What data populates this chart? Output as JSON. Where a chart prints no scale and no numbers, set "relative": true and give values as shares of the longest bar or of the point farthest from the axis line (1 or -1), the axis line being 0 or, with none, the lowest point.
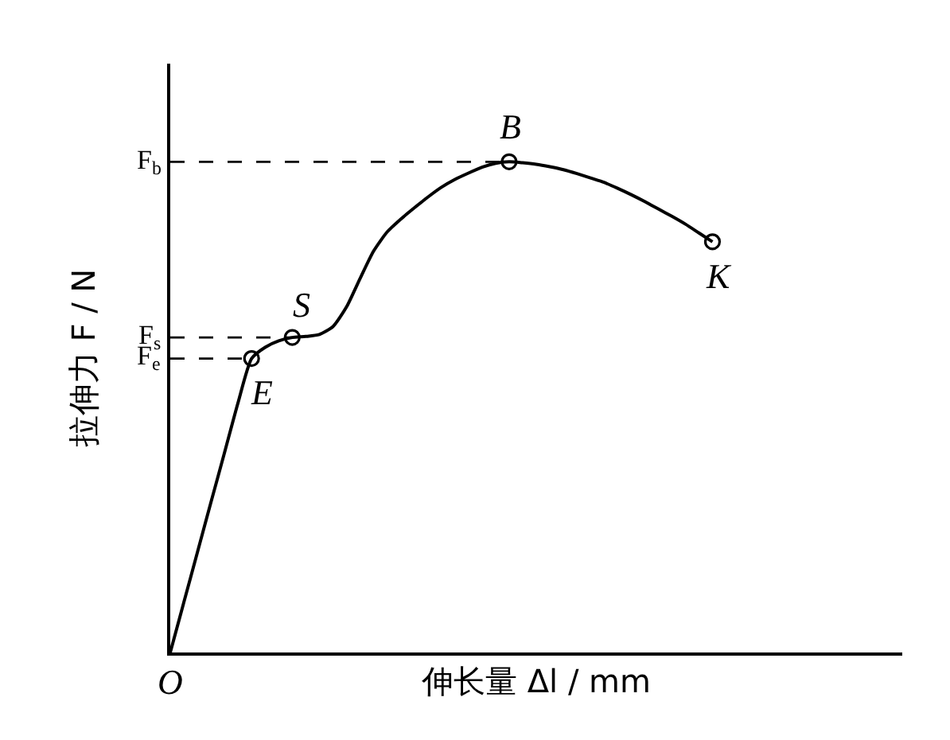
{
  "chart_data": {
    "type": "line",
    "relative": true,
    "xlabel": "伸长量 Δl / mm",
    "ylabel": "拉伸力 F / N",
    "marker": "none",
    "line_style": "solid",
    "grid": false,
    "categories": [
      null,
      null,
      null,
      null,
      null,
      null,
      null,
      null,
      null,
      null,
      null,
      null,
      null,
      null,
      null,
      null,
      null,
      null,
      null,
      null,
      null,
      null,
      null,
      null,
      null,
      null,
      null,
      null,
      null,
      null,
      null,
      null,
      null,
      null,
      null,
      null,
      null,
      null,
      null,
      null,
      null
    ],
    "series": [
      {
        "color": "#000000",
        "values": [
          0,
          0.102,
          0.204,
          0.306,
          0.407,
          0.509,
          0.599,
          0.622,
          0.635,
          0.642,
          0.644,
          0.648,
          0.664,
          0.704,
          0.762,
          0.818,
          0.857,
          0.883,
          0.906,
          0.928,
          0.948,
          0.964,
          0.977,
          0.989,
          0.997,
          1,
          0.998,
          0.995,
          0.99,
          0.984,
          0.976,
          0.967,
          0.958,
          0.946,
          0.933,
          0.919,
          0.904,
          0.889,
          0.873,
          0.855,
          0.837
        ]
      }
    ],
    "ref_lines": [
      {
        "axis": "y",
        "value": 1,
        "label": "F$_{b}$",
        "line_style": "dashed",
        "color": "#000000"
      },
      {
        "axis": "y",
        "value": 0.642,
        "label": "F$_{s}$",
        "line_style": "dashed",
        "color": "#000000"
      },
      {
        "axis": "y",
        "value": 0.599,
        "label": "F$_{e}$",
        "line_style": "dashed",
        "color": "#000000"
      }
    ],
    "annotations": [
      "O",
      {
        "text": "E",
        "y": 0.599
      },
      {
        "text": "S",
        "y": 0.642
      },
      {
        "text": "B",
        "y": 1
      },
      {
        "text": "K",
        "y": 0.837
      }
    ]
  }
}
